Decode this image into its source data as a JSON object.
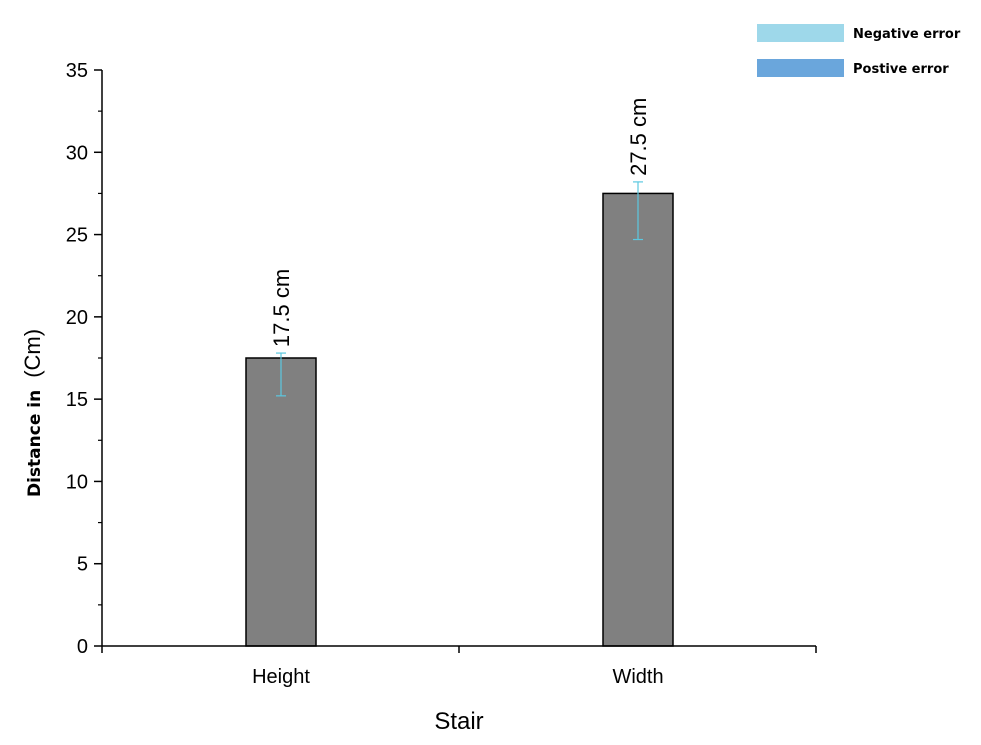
{
  "chart_data": {
    "type": "bar",
    "categories": [
      "Height",
      "Width"
    ],
    "values": [
      17.5,
      27.5
    ],
    "errors": [
      {
        "negative": 2.3,
        "positive": 0.3
      },
      {
        "negative": 2.8,
        "positive": 0.7
      }
    ],
    "data_labels": [
      "17.5 cm",
      "27.5 cm"
    ],
    "xlabel": "Stair",
    "ylabel_prefix": "Distance in",
    "ylabel_unit": "(Cm)",
    "ylim": [
      0,
      35
    ],
    "yticks": [
      "0",
      "5",
      "10",
      "15",
      "20",
      "25",
      "30",
      "35"
    ],
    "grid": false,
    "legend_position": "top-right",
    "legend": [
      {
        "label": "Negative error",
        "color": "#9ed8ea"
      },
      {
        "label": "Postive error",
        "color": "#6aa6dc"
      }
    ],
    "colors": {
      "bar_fill": "#808080",
      "bar_stroke": "#000000",
      "error_bar": "#5bc8e0"
    }
  }
}
